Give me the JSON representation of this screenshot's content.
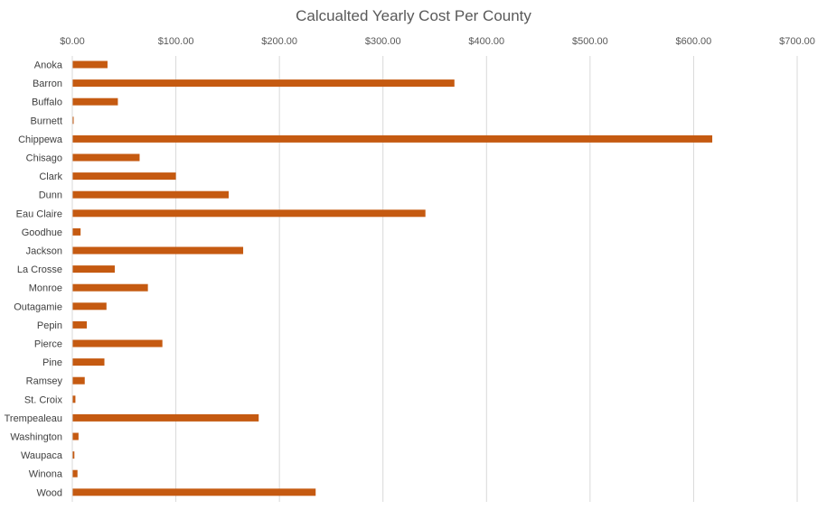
{
  "chart_data": {
    "type": "bar",
    "orientation": "horizontal",
    "title": "Calcualted Yearly Cost Per County",
    "xlabel": "",
    "ylabel": "",
    "xlim": [
      0,
      700
    ],
    "x_ticks": [
      0,
      100,
      200,
      300,
      400,
      500,
      600,
      700
    ],
    "x_tick_labels": [
      "$0.00",
      "$100.00",
      "$200.00",
      "$300.00",
      "$400.00",
      "$500.00",
      "$600.00",
      "$700.00"
    ],
    "x_axis_position": "top",
    "grid": true,
    "legend": "none",
    "bar_color": "#c55a11",
    "categories": [
      "Anoka",
      "Barron",
      "Buffalo",
      "Burnett",
      "Chippewa",
      "Chisago",
      "Clark",
      "Dunn",
      "Eau Claire",
      "Goodhue",
      "Jackson",
      "La Crosse",
      "Monroe",
      "Outagamie",
      "Pepin",
      "Pierce",
      "Pine",
      "Ramsey",
      "St. Croix",
      "Trempealeau",
      "Washington",
      "Waupaca",
      "Winona",
      "Wood"
    ],
    "values": [
      34,
      369,
      44,
      1,
      618,
      65,
      100,
      151,
      341,
      8,
      165,
      41,
      73,
      33,
      14,
      87,
      31,
      12,
      3,
      180,
      6,
      2,
      5,
      235
    ]
  }
}
